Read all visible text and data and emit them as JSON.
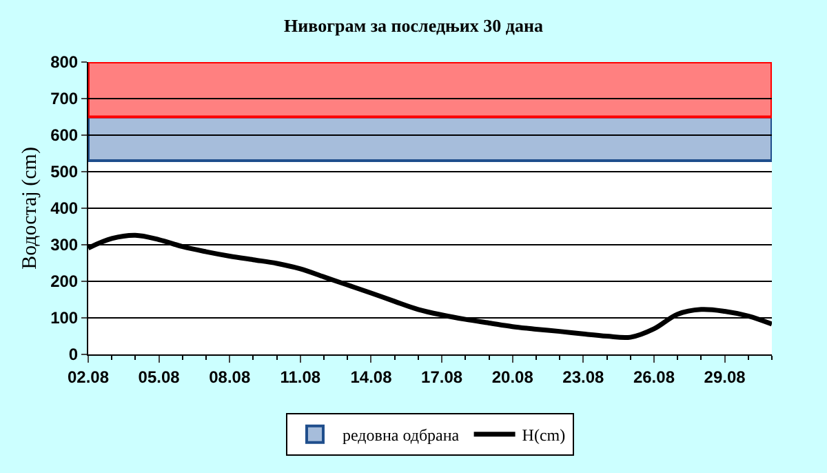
{
  "chart_data": {
    "type": "line",
    "title": "Нивограм за последњих 30 дана",
    "ylabel": "Водостај (cm)",
    "categories": [
      "02.08",
      null,
      null,
      "05.08",
      null,
      null,
      "08.08",
      null,
      null,
      "11.08",
      null,
      null,
      "14.08",
      null,
      null,
      "17.08",
      null,
      null,
      "20.08",
      null,
      null,
      "23.08",
      null,
      null,
      "26.08",
      null,
      null,
      "29.08",
      null,
      null
    ],
    "series": [
      {
        "name": "H(cm)",
        "color": "#000000",
        "values": [
          291,
          317,
          326,
          314,
          295,
          281,
          269,
          259,
          249,
          234,
          212,
          190,
          168,
          145,
          123,
          108,
          96,
          86,
          76,
          69,
          63,
          56,
          50,
          47,
          70,
          110,
          123,
          118,
          105,
          83
        ]
      }
    ],
    "ylim": [
      0,
      800
    ],
    "yticks": [
      0,
      100,
      200,
      300,
      400,
      500,
      600,
      700,
      800
    ],
    "grid": "y",
    "legend": "bottom",
    "bands": [
      {
        "axis": "y",
        "from": 530,
        "to": 650,
        "label": "редовна одбрана",
        "color": "#a6bddb"
      },
      {
        "axis": "y",
        "from": 650,
        "to": 800,
        "color": "#ff8080"
      }
    ]
  }
}
